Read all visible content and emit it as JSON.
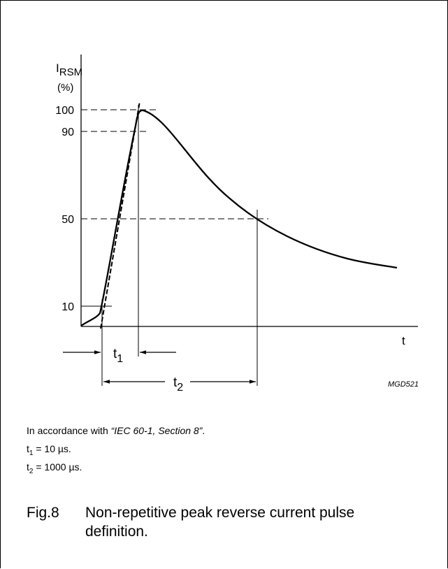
{
  "figure": {
    "y_axis_label_main": "I",
    "y_axis_label_sub": "RSM",
    "y_axis_unit": "(%)",
    "x_axis_label": "t",
    "y_ticks": [
      "100",
      "90",
      "50",
      "10"
    ],
    "t1_main": "t",
    "t1_sub": "1",
    "t2_main": "t",
    "t2_sub": "2",
    "code": "MGD521"
  },
  "notes": {
    "line1_prefix": "In accordance with ",
    "line1_ref": "“IEC 60-1, Section 8”",
    "line1_suffix": ".",
    "t1_main": "t",
    "t1_sub": "1",
    "t1_value": " = 10 µs.",
    "t2_main": "t",
    "t2_sub": "2",
    "t2_value": " = 1000 µs."
  },
  "caption": {
    "number": "Fig.8",
    "text": "Non-repetitive peak reverse current pulse definition."
  }
}
